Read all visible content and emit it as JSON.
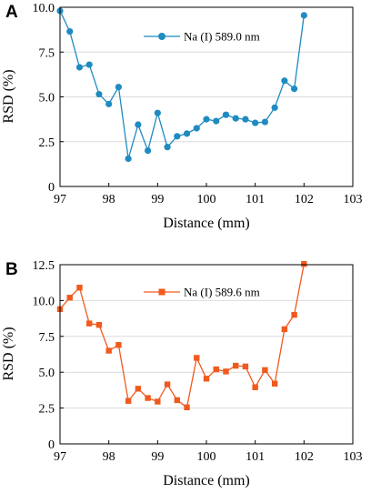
{
  "chart_data": [
    {
      "panel": "A",
      "type": "line",
      "xlabel": "Distance (mm)",
      "ylabel": "RSD (%)",
      "xlim": [
        97,
        103
      ],
      "ylim": [
        0,
        10
      ],
      "xticks": [
        "97",
        "98",
        "99",
        "100",
        "101",
        "102",
        "103"
      ],
      "yticks": [
        "0",
        "2.5",
        "5.0",
        "7.5",
        "10.0"
      ],
      "grid": "horizontal",
      "legend_position": "top-center",
      "series": [
        {
          "name": "Na (I) 589.0 nm",
          "color": "#1f8bc0",
          "marker": "circle",
          "x": [
            97.0,
            97.2,
            97.4,
            97.6,
            97.8,
            98.0,
            98.2,
            98.4,
            98.6,
            98.8,
            99.0,
            99.2,
            99.4,
            99.6,
            99.8,
            100.0,
            100.2,
            100.4,
            100.6,
            100.8,
            101.0,
            101.2,
            101.4,
            101.6,
            101.8,
            102.0
          ],
          "y": [
            9.8,
            8.65,
            6.65,
            6.8,
            5.15,
            4.6,
            5.55,
            1.55,
            3.45,
            2.0,
            4.1,
            2.2,
            2.8,
            2.95,
            3.25,
            3.75,
            3.65,
            4.0,
            3.8,
            3.75,
            3.55,
            3.6,
            4.4,
            5.9,
            5.45,
            9.55
          ]
        }
      ]
    },
    {
      "panel": "B",
      "type": "line",
      "xlabel": "Distance (mm)",
      "ylabel": "RSD (%)",
      "xlim": [
        97,
        103
      ],
      "ylim": [
        0,
        12.5
      ],
      "xticks": [
        "97",
        "98",
        "99",
        "100",
        "101",
        "102",
        "103"
      ],
      "yticks": [
        "0",
        "2.5",
        "5.0",
        "7.5",
        "10.0",
        "12.5"
      ],
      "grid": "horizontal",
      "legend_position": "top-center",
      "series": [
        {
          "name": "Na (I) 589.6 nm",
          "color": "#f05a1e",
          "marker": "square",
          "x": [
            97.0,
            97.2,
            97.4,
            97.6,
            97.8,
            98.0,
            98.2,
            98.4,
            98.6,
            98.8,
            99.0,
            99.2,
            99.4,
            99.6,
            99.8,
            100.0,
            100.2,
            100.4,
            100.6,
            100.8,
            101.0,
            101.2,
            101.4,
            101.6,
            101.8,
            102.0
          ],
          "y": [
            9.4,
            10.2,
            10.9,
            8.4,
            8.3,
            6.5,
            6.9,
            3.0,
            3.85,
            3.2,
            2.95,
            4.15,
            3.05,
            2.55,
            6.0,
            4.55,
            5.2,
            5.05,
            5.45,
            5.4,
            3.95,
            5.15,
            4.2,
            8.0,
            9.0,
            12.55
          ]
        }
      ]
    }
  ]
}
